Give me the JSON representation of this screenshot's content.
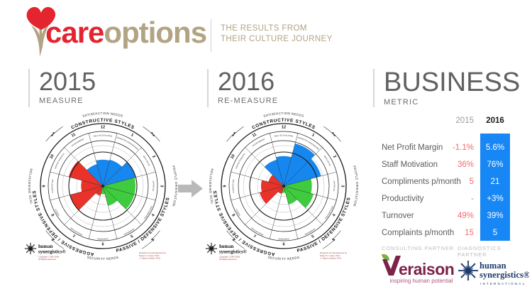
{
  "brand": {
    "care": "care",
    "options": "options",
    "tagline_line1": "THE RESULTS FROM",
    "tagline_line2": "THEIR CULTURE JOURNEY"
  },
  "columns": [
    {
      "title": "2015",
      "subtitle": "MEASURE"
    },
    {
      "title": "2016",
      "subtitle": "RE-MEASURE"
    },
    {
      "title": "BUSINESS",
      "subtitle": "METRIC"
    }
  ],
  "circumplex": {
    "style_labels": [
      "HUMANISTIC-ENCOURAGING",
      "AFFILIATIVE",
      "APPROVAL",
      "CONVENTIONAL",
      "DEPENDENT",
      "AVOIDANCE",
      "OPPOSITIONAL",
      "POWER",
      "COMPETITIVE",
      "PERFECTIONISTIC",
      "ACHIEVEMENT",
      "SELF-ACTUALIZING"
    ],
    "group_labels": {
      "top": "CONSTRUCTIVE STYLES",
      "bottom_right": "PASSIVE / DEFENSIVE STYLES",
      "bottom_left": "AGGRESSIVE / DEFENSIVE STYLES"
    },
    "needs_labels": {
      "top": "SATISFACTION NEEDS",
      "bottom": "SECURITY NEEDS",
      "right": "PEOPLE ORIENTATION",
      "left": "TASK ORIENTATION"
    },
    "groups": [
      "constructive",
      "constructive",
      "passive",
      "passive",
      "passive",
      "passive",
      "aggressive",
      "aggressive",
      "aggressive",
      "aggressive",
      "constructive",
      "constructive"
    ],
    "colors": {
      "constructive": "#1787f0",
      "passive": "#3ecb3e",
      "aggressive": "#e8322a"
    },
    "logo_line1": "human",
    "logo_line2": "synergistics®",
    "copyright": [
      "Copyright © 1987-2009",
      "All Rights Reserved"
    ],
    "credit": [
      "Research and development by",
      "Robert A. Cooke, Ph.D.",
      "J. Clayton Lafferty, Ph.D."
    ]
  },
  "chart_data": [
    {
      "type": "pie",
      "subtype": "circumplex-sector-chart",
      "title": "2015 Measure",
      "categories": [
        "HUMANISTIC-ENCOURAGING",
        "AFFILIATIVE",
        "APPROVAL",
        "CONVENTIONAL",
        "DEPENDENT",
        "AVOIDANCE",
        "OPPOSITIONAL",
        "POWER",
        "COMPETITIVE",
        "PERFECTIONISTIC",
        "ACHIEVEMENT",
        "SELF-ACTUALIZING"
      ],
      "clock_positions": [
        1,
        2,
        3,
        4,
        5,
        6,
        7,
        8,
        9,
        10,
        11,
        12
      ],
      "values": [
        60,
        75,
        72,
        72,
        45,
        18,
        22,
        75,
        48,
        78,
        50,
        58
      ],
      "note": "values are approximate percentile extents (0-100 of chart radius) read from wedge lengths"
    },
    {
      "type": "pie",
      "subtype": "circumplex-sector-chart",
      "title": "2016 Re-Measure",
      "categories": [
        "HUMANISTIC-ENCOURAGING",
        "AFFILIATIVE",
        "APPROVAL",
        "CONVENTIONAL",
        "DEPENDENT",
        "AVOIDANCE",
        "OPPOSITIONAL",
        "POWER",
        "COMPETITIVE",
        "PERFECTIONISTIC",
        "ACHIEVEMENT",
        "SELF-ACTUALIZING"
      ],
      "clock_positions": [
        1,
        2,
        3,
        4,
        5,
        6,
        7,
        8,
        9,
        10,
        11,
        12
      ],
      "values": [
        97,
        85,
        62,
        68,
        42,
        15,
        18,
        55,
        50,
        35,
        60,
        66
      ],
      "note": "values are approximate percentile extents (0-100 of chart radius) read from wedge lengths"
    },
    {
      "type": "table",
      "title": "Business Metric",
      "columns": [
        "Metric",
        "2015",
        "2016"
      ],
      "rows": [
        [
          "Net Profit Margin",
          "-1.1%",
          "5.6%"
        ],
        [
          "Staff Motivation",
          "36%",
          "76%"
        ],
        [
          "Compliments p/month",
          "5",
          "21"
        ],
        [
          "Productivity",
          "-",
          "+3%"
        ],
        [
          "Turnover",
          "49%",
          "39%"
        ],
        [
          "Complaints p/month",
          "15",
          "5"
        ]
      ]
    }
  ],
  "metrics": {
    "col_2015": "2015",
    "col_2016": "2016",
    "rows": [
      {
        "label": "Net Profit Margin",
        "y2015": "-1.1%",
        "y2016": "5.6%"
      },
      {
        "label": "Staff Motivation",
        "y2015": "36%",
        "y2016": "76%"
      },
      {
        "label": "Compliments p/month",
        "y2015": "5",
        "y2016": "21"
      },
      {
        "label": "Productivity",
        "y2015": "-",
        "y2016": "+3%"
      },
      {
        "label": "Turnover",
        "y2015": "49%",
        "y2016": "39%"
      },
      {
        "label": "Complaints p/month",
        "y2015": "15",
        "y2016": "5"
      }
    ]
  },
  "partners": {
    "consulting_label": "CONSULTING  PARTNER",
    "diagnostics_label": "DIAGNOSTICS  PARTNER",
    "veraison": {
      "name": "Veraison",
      "wordmark_rest": "eraison",
      "tagline": "inspiring human potential"
    },
    "synergistics": {
      "line1": "human",
      "line2": "synergistics®",
      "line3": "INTERNATIONAL"
    }
  },
  "colors": {
    "accent_blue": "#1787f5",
    "metric_negative_red": "#f4696d",
    "brand_red": "#e4242e",
    "brand_tan": "#b2a383",
    "constructive_blue": "#1787f0",
    "passive_green": "#3ecb3e",
    "aggressive_red": "#e8322a",
    "veraison_maroon": "#7d2248",
    "veraison_green": "#76b043",
    "synergistics_navy": "#1e3a6d"
  }
}
